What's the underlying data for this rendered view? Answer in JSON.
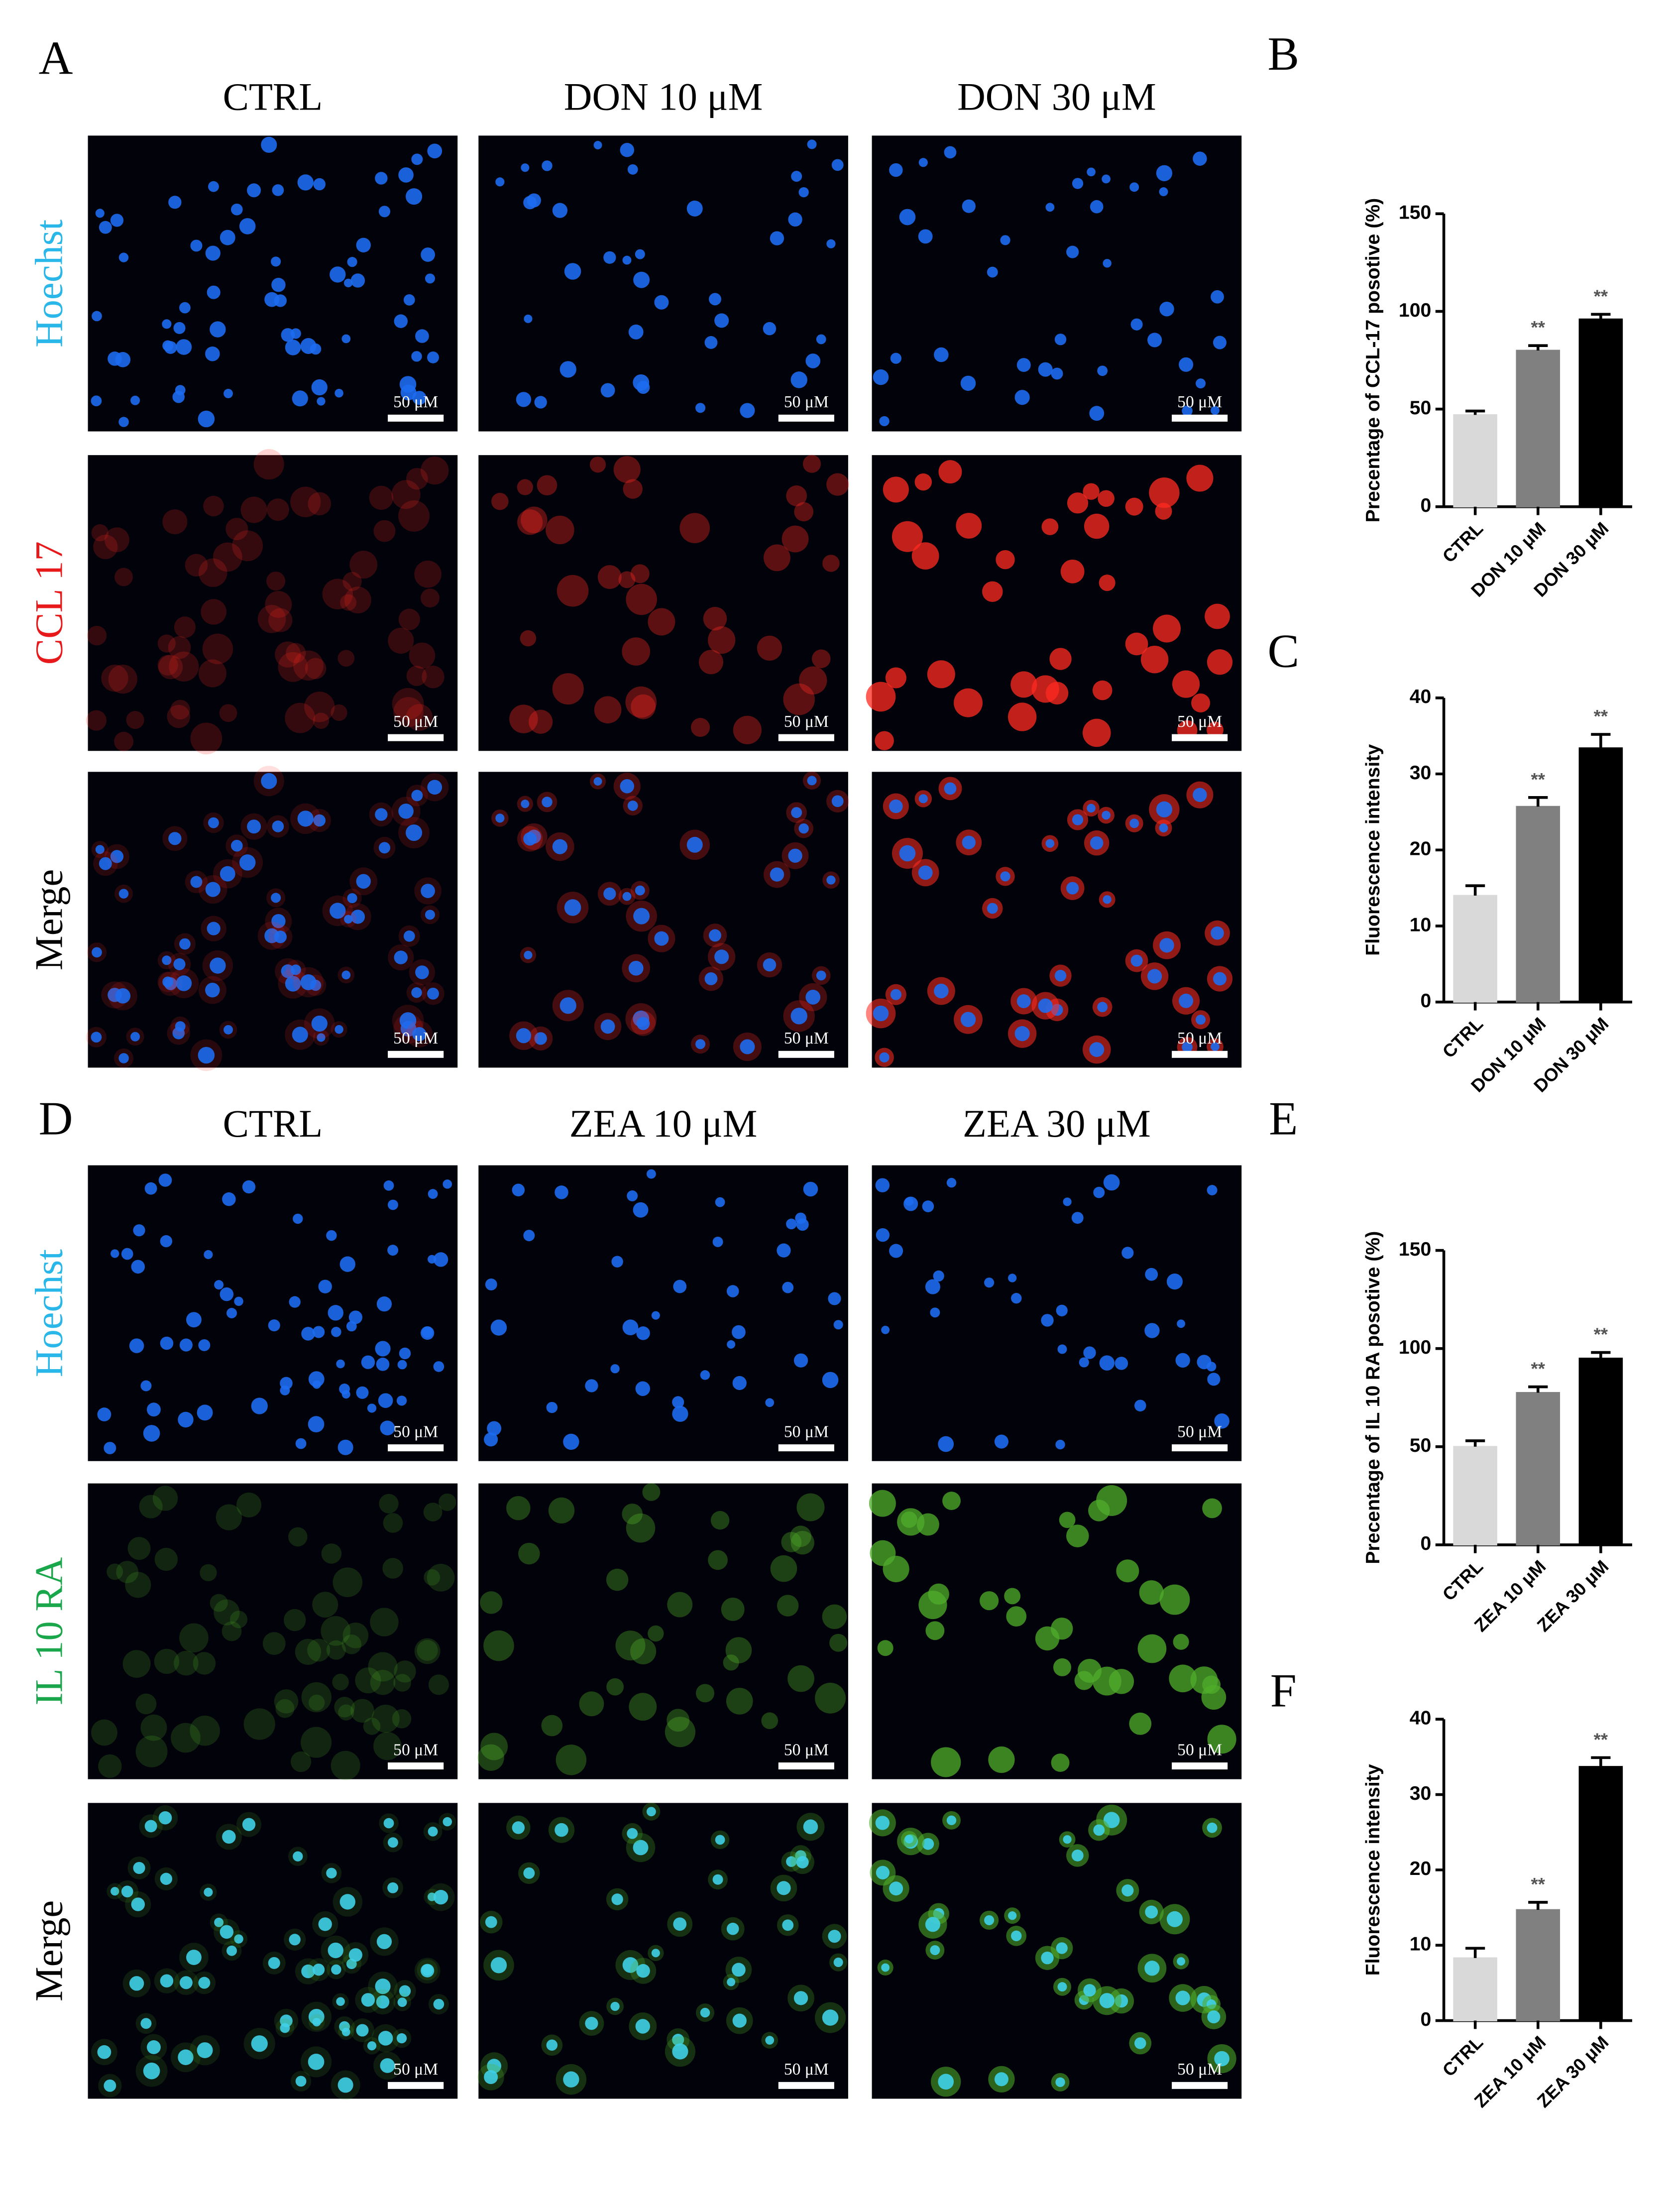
{
  "figure": {
    "panel_letters": [
      "A",
      "B",
      "C",
      "D",
      "E",
      "F"
    ],
    "sections": [
      {
        "columns": [
          "CTRL",
          "DON 10 μM",
          "DON 30 μM"
        ],
        "rows": [
          "Hoechst",
          "CCL 17",
          "Merge"
        ],
        "row_colors": [
          "#29b6e8",
          "#e8191b",
          "#000000"
        ],
        "stain_color": "#ff2a20"
      },
      {
        "columns": [
          "CTRL",
          "ZEA 10 μM",
          "ZEA 30 μM"
        ],
        "rows": [
          "Hoechst",
          "IL 10 RA",
          "Merge"
        ],
        "row_colors": [
          "#29b6e8",
          "#1aa64a",
          "#000000"
        ],
        "stain_color": "#4fae2a"
      }
    ],
    "scale_bar": "50 μM"
  },
  "chart_data": [
    {
      "type": "bar",
      "ylabel": "Precentage of CCL-17 posotive (%)",
      "categories": [
        "CTRL",
        "DON 10 μM",
        "DON 30 μM"
      ],
      "values": [
        47,
        80,
        96
      ],
      "errors": [
        2,
        2.5,
        2.5
      ],
      "annotations": [
        null,
        "**",
        "**"
      ],
      "colors": [
        "#d9d9d9",
        "#808080",
        "#000000"
      ],
      "ylim": [
        0,
        150
      ],
      "yticks": [
        0,
        50,
        100,
        150
      ]
    },
    {
      "type": "bar",
      "ylabel": "Fluorescence intensity",
      "categories": [
        "CTRL",
        "DON 10 μM",
        "DON 30 μM"
      ],
      "values": [
        14,
        25.7,
        33.4
      ],
      "errors": [
        1.3,
        1.2,
        1.8
      ],
      "annotations": [
        null,
        "**",
        "**"
      ],
      "colors": [
        "#d9d9d9",
        "#808080",
        "#000000"
      ],
      "ylim": [
        0,
        40
      ],
      "yticks": [
        0,
        10,
        20,
        30,
        40
      ]
    },
    {
      "type": "bar",
      "ylabel": "Precentage of IL 10 RA posotive (%)",
      "categories": [
        "CTRL",
        "ZEA 10 μM",
        "ZEA 30 μM"
      ],
      "values": [
        50,
        77.5,
        95
      ],
      "errors": [
        3,
        3,
        3
      ],
      "annotations": [
        null,
        "**",
        "**"
      ],
      "colors": [
        "#d9d9d9",
        "#808080",
        "#000000"
      ],
      "ylim": [
        0,
        150
      ],
      "yticks": [
        0,
        50,
        100,
        150
      ]
    },
    {
      "type": "bar",
      "ylabel": "Fluorescence intensity",
      "categories": [
        "CTRL",
        "ZEA 10 μM",
        "ZEA 30 μM"
      ],
      "values": [
        8.3,
        14.7,
        33.7
      ],
      "errors": [
        1.3,
        1,
        1.2
      ],
      "annotations": [
        null,
        "**",
        "**"
      ],
      "colors": [
        "#d9d9d9",
        "#808080",
        "#000000"
      ],
      "ylim": [
        0,
        40
      ],
      "yticks": [
        0,
        10,
        20,
        30,
        40
      ]
    }
  ]
}
